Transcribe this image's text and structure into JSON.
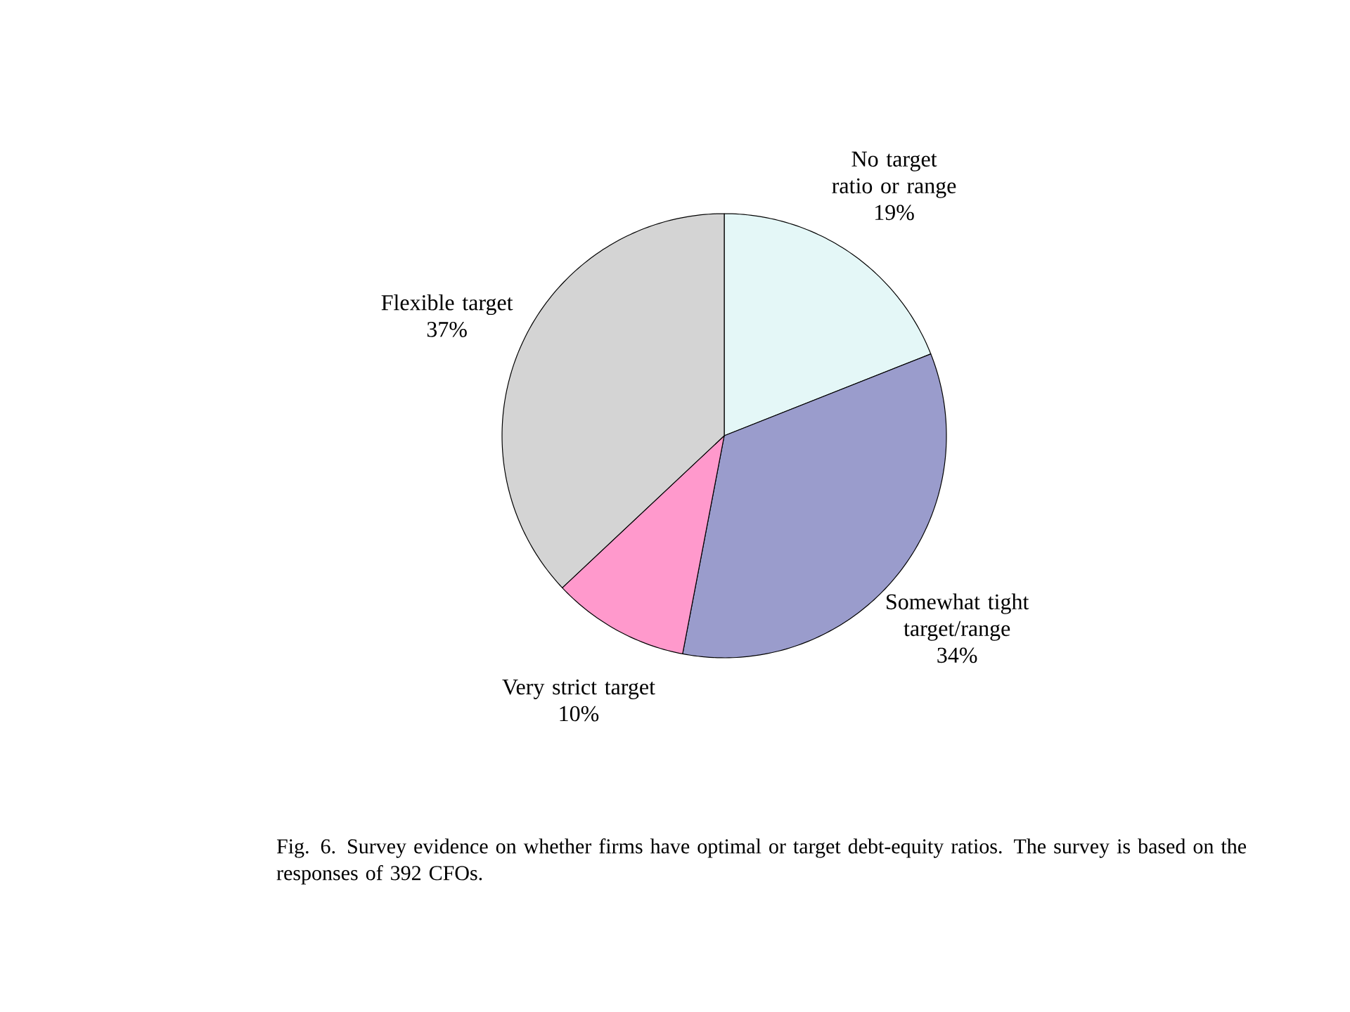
{
  "chart_data": {
    "type": "pie",
    "categories": [
      "No target ratio or range",
      "Somewhat tight target/range",
      "Very strict target",
      "Flexible target"
    ],
    "values": [
      19,
      34,
      10,
      37
    ],
    "value_labels": [
      "19%",
      "34%",
      "10%",
      "37%"
    ],
    "colors": [
      "#e4f7f7",
      "#9a9ccc",
      "#ff99cc",
      "#d4d4d4"
    ],
    "annotations": [
      "Fig. 6.  Survey evidence on whether firms have optimal or target debt-equity ratios. The survey is based on the responses of 392 CFOs."
    ]
  }
}
